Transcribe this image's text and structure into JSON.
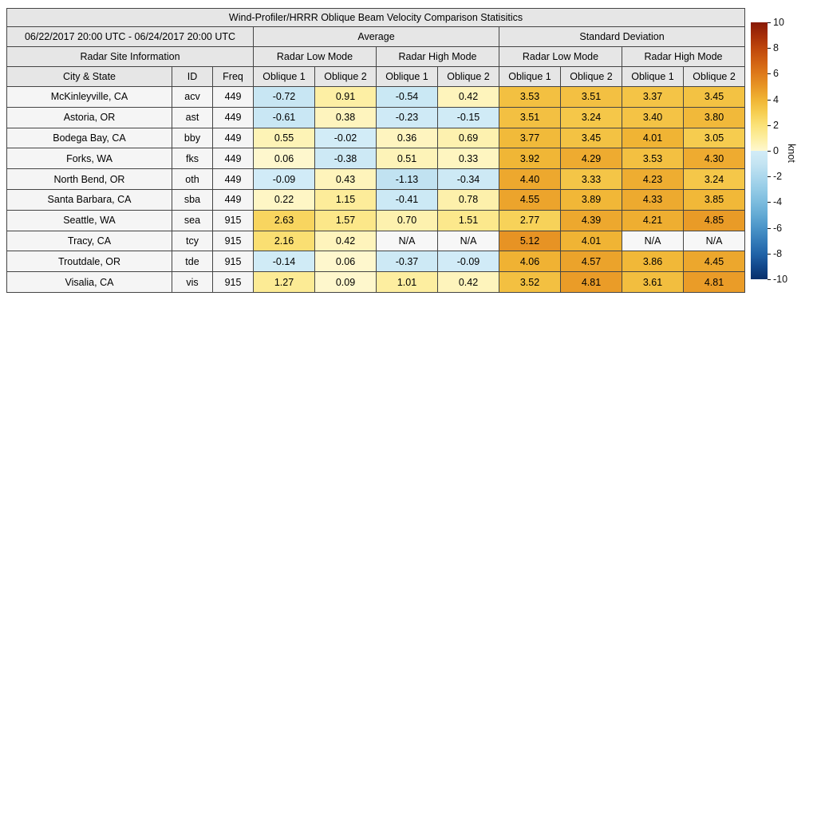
{
  "table": {
    "title": "Wind-Profiler/HRRR Oblique Beam Velocity Comparison Statisitics",
    "date_range": "06/22/2017 20:00 UTC - 06/24/2017 20:00 UTC",
    "group_average": "Average",
    "group_std": "Standard Deviation",
    "site_info_header": "Radar Site Information",
    "low_mode": "Radar Low Mode",
    "high_mode": "Radar High Mode",
    "col_city": "City & State",
    "col_id": "ID",
    "col_freq": "Freq",
    "col_oblique1": "Oblique 1",
    "col_oblique2": "Oblique 2"
  },
  "colorbar": {
    "label": "knot",
    "min": -10,
    "max": 10,
    "ticks": [
      10,
      8,
      6,
      4,
      2,
      0,
      -2,
      -4,
      -6,
      -8,
      -10
    ]
  },
  "colors": {
    "header_bg": "#e6e6e6",
    "site_cell_bg": "#f5f5f5",
    "na_cell_bg": "#f7f7f7",
    "border": "#444444",
    "positive_scale": [
      "#fef8d0",
      "#fdeea0",
      "#fbe278",
      "#f6cd50",
      "#f0b434",
      "#e89625",
      "#de7a1a",
      "#d05f12",
      "#be460c",
      "#a52d08",
      "#871906"
    ],
    "negative_scale": [
      "#d2ecf7",
      "#c4e4f2",
      "#acd8ed",
      "#94cbe6",
      "#7cbcde",
      "#63aad4",
      "#4a94c8",
      "#347cb9",
      "#2164a8",
      "#12488c",
      "#08306b"
    ]
  },
  "chart_data": {
    "type": "heatmap",
    "title": "Wind-Profiler/HRRR Oblique Beam Velocity Comparison Statisitics",
    "subtitle": "06/22/2017 20:00 UTC - 06/24/2017 20:00 UTC",
    "colorbar_label": "knot",
    "colorbar_range": [
      -10,
      10
    ],
    "column_groups": [
      "Average",
      "Standard Deviation"
    ],
    "columns": [
      "Average / Radar Low Mode / Oblique 1",
      "Average / Radar Low Mode / Oblique 2",
      "Average / Radar High Mode / Oblique 1",
      "Average / Radar High Mode / Oblique 2",
      "Standard Deviation / Radar Low Mode / Oblique 1",
      "Standard Deviation / Radar Low Mode / Oblique 2",
      "Standard Deviation / Radar High Mode / Oblique 1",
      "Standard Deviation / Radar High Mode / Oblique 2"
    ],
    "rows": [
      {
        "city": "McKinleyville, CA",
        "id": "acv",
        "freq": "449",
        "values": [
          "-0.72",
          "0.91",
          "-0.54",
          "0.42",
          "3.53",
          "3.51",
          "3.37",
          "3.45"
        ]
      },
      {
        "city": "Astoria, OR",
        "id": "ast",
        "freq": "449",
        "values": [
          "-0.61",
          "0.38",
          "-0.23",
          "-0.15",
          "3.51",
          "3.24",
          "3.40",
          "3.80"
        ]
      },
      {
        "city": "Bodega Bay, CA",
        "id": "bby",
        "freq": "449",
        "values": [
          "0.55",
          "-0.02",
          "0.36",
          "0.69",
          "3.77",
          "3.45",
          "4.01",
          "3.05"
        ]
      },
      {
        "city": "Forks, WA",
        "id": "fks",
        "freq": "449",
        "values": [
          "0.06",
          "-0.38",
          "0.51",
          "0.33",
          "3.92",
          "4.29",
          "3.53",
          "4.30"
        ]
      },
      {
        "city": "North Bend, OR",
        "id": "oth",
        "freq": "449",
        "values": [
          "-0.09",
          "0.43",
          "-1.13",
          "-0.34",
          "4.40",
          "3.33",
          "4.23",
          "3.24"
        ]
      },
      {
        "city": "Santa Barbara, CA",
        "id": "sba",
        "freq": "449",
        "values": [
          "0.22",
          "1.15",
          "-0.41",
          "0.78",
          "4.55",
          "3.89",
          "4.33",
          "3.85"
        ]
      },
      {
        "city": "Seattle, WA",
        "id": "sea",
        "freq": "915",
        "values": [
          "2.63",
          "1.57",
          "0.70",
          "1.51",
          "2.77",
          "4.39",
          "4.21",
          "4.85"
        ]
      },
      {
        "city": "Tracy, CA",
        "id": "tcy",
        "freq": "915",
        "values": [
          "2.16",
          "0.42",
          "N/A",
          "N/A",
          "5.12",
          "4.01",
          "N/A",
          "N/A"
        ]
      },
      {
        "city": "Troutdale, OR",
        "id": "tde",
        "freq": "915",
        "values": [
          "-0.14",
          "0.06",
          "-0.37",
          "-0.09",
          "4.06",
          "4.57",
          "3.86",
          "4.45"
        ]
      },
      {
        "city": "Visalia, CA",
        "id": "vis",
        "freq": "915",
        "values": [
          "1.27",
          "0.09",
          "1.01",
          "0.42",
          "3.52",
          "4.81",
          "3.61",
          "4.81"
        ]
      }
    ]
  }
}
